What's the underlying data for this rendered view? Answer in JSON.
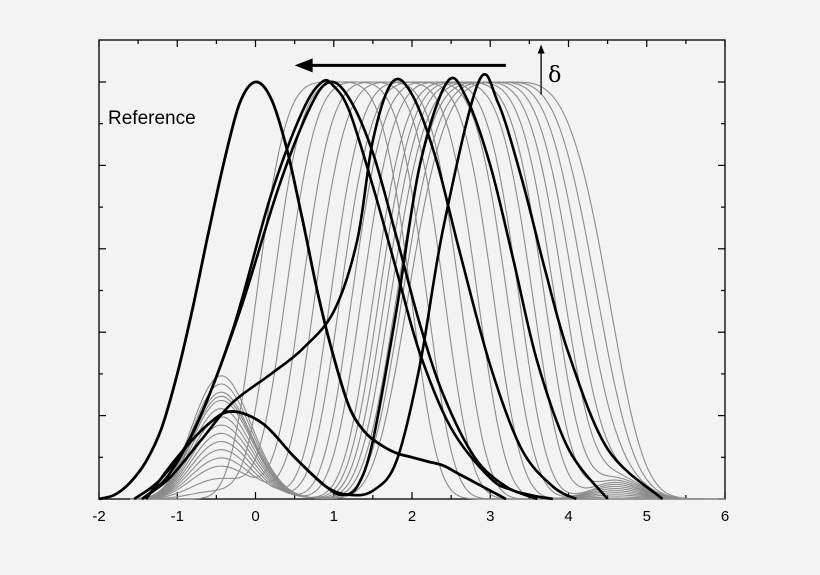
{
  "chart_data": {
    "type": "line",
    "title": "",
    "xlabel": "",
    "ylabel": "",
    "xlim": [
      -2,
      6
    ],
    "ylim": [
      0,
      1.0
    ],
    "x_ticks": [
      -2,
      -1,
      0,
      1,
      2,
      3,
      4,
      5,
      6
    ],
    "x_tick_labels": [
      "-2",
      "-1",
      "0",
      "1",
      "2",
      "3",
      "4",
      "5",
      "6"
    ],
    "y_tick_labels_shown": false,
    "grid": false,
    "legend": "none",
    "annotations": {
      "reference_label": "Reference",
      "delta_label": "δ"
    },
    "colors": {
      "highlight": "#000000",
      "family": "#8c8c8c",
      "background": "#f3f3f3"
    },
    "reference_series": {
      "name": "Reference",
      "x": [
        -2.0,
        -1.8,
        -1.6,
        -1.4,
        -1.2,
        -1.0,
        -0.8,
        -0.6,
        -0.4,
        -0.2,
        0.0,
        0.2,
        0.4,
        0.6,
        0.8,
        1.0,
        1.2,
        1.4,
        1.6,
        1.8,
        2.0,
        2.2,
        2.4,
        2.6,
        2.8,
        3.0,
        3.2
      ],
      "y": [
        0.0,
        0.01,
        0.04,
        0.09,
        0.17,
        0.3,
        0.46,
        0.64,
        0.81,
        0.95,
        1.0,
        0.96,
        0.84,
        0.67,
        0.49,
        0.34,
        0.22,
        0.16,
        0.13,
        0.11,
        0.1,
        0.09,
        0.08,
        0.06,
        0.04,
        0.02,
        0.0
      ]
    },
    "highlighted_curves": [
      {
        "x": [
          -1.55,
          -1.2,
          -0.8,
          -0.3,
          0.2,
          0.6,
          0.85,
          1.0,
          1.2,
          1.5,
          1.8,
          2.1,
          2.5,
          3.0,
          3.3,
          3.6
        ],
        "y": [
          0.0,
          0.05,
          0.16,
          0.4,
          0.73,
          0.93,
          1.0,
          0.99,
          0.93,
          0.75,
          0.55,
          0.35,
          0.17,
          0.05,
          0.02,
          0.0
        ]
      },
      {
        "x": [
          -1.45,
          -1.1,
          -0.7,
          -0.2,
          0.3,
          0.7,
          0.95,
          1.2,
          1.5,
          1.8,
          2.1,
          2.4,
          2.8,
          3.2,
          3.5,
          3.8
        ],
        "y": [
          0.0,
          0.06,
          0.2,
          0.45,
          0.75,
          0.94,
          1.0,
          0.96,
          0.83,
          0.63,
          0.42,
          0.25,
          0.1,
          0.03,
          0.01,
          0.0
        ]
      },
      {
        "x": [
          -1.45,
          -1.1,
          -0.7,
          -0.3,
          0.2,
          0.6,
          1.0,
          1.3,
          1.5,
          1.75,
          2.0,
          2.3,
          2.6,
          3.0,
          3.4,
          3.8,
          4.1
        ],
        "y": [
          0.0,
          0.05,
          0.14,
          0.23,
          0.3,
          0.36,
          0.45,
          0.62,
          0.86,
          1.0,
          0.97,
          0.82,
          0.6,
          0.32,
          0.12,
          0.03,
          0.0
        ]
      },
      {
        "x": [
          -1.4,
          -1.0,
          -0.6,
          -0.3,
          0.1,
          0.5,
          0.9,
          1.1,
          1.3,
          1.5,
          1.8,
          2.1,
          2.45,
          2.7,
          3.0,
          3.3,
          3.6,
          4.0,
          4.5
        ],
        "y": [
          0.0,
          0.1,
          0.18,
          0.21,
          0.18,
          0.1,
          0.03,
          0.01,
          0.03,
          0.14,
          0.45,
          0.8,
          1.0,
          0.96,
          0.8,
          0.57,
          0.33,
          0.12,
          0.0
        ]
      },
      {
        "x": [
          -1.4,
          -1.0,
          -0.6,
          -0.3,
          0.1,
          0.5,
          0.9,
          1.2,
          1.5,
          1.8,
          2.1,
          2.4,
          2.85,
          3.1,
          3.4,
          3.7,
          4.0,
          4.5,
          5.2
        ],
        "y": [
          0.0,
          0.1,
          0.18,
          0.21,
          0.18,
          0.1,
          0.03,
          0.01,
          0.02,
          0.09,
          0.32,
          0.65,
          1.0,
          0.95,
          0.77,
          0.55,
          0.35,
          0.12,
          0.0
        ]
      }
    ],
    "family_series": [
      {
        "peak": 1.0,
        "halfwidth": 1.9,
        "bump": 0.0
      },
      {
        "peak": 1.2,
        "halfwidth": 1.9,
        "bump": 0.02
      },
      {
        "peak": 1.4,
        "halfwidth": 1.95,
        "bump": 0.05
      },
      {
        "peak": 1.6,
        "halfwidth": 1.95,
        "bump": 0.08
      },
      {
        "peak": 1.8,
        "halfwidth": 2.0,
        "bump": 0.1
      },
      {
        "peak": 2.0,
        "halfwidth": 2.0,
        "bump": 0.12
      },
      {
        "peak": 2.15,
        "halfwidth": 2.05,
        "bump": 0.14
      },
      {
        "peak": 2.3,
        "halfwidth": 2.05,
        "bump": 0.16
      },
      {
        "peak": 2.45,
        "halfwidth": 2.1,
        "bump": 0.18
      },
      {
        "peak": 2.6,
        "halfwidth": 2.1,
        "bump": 0.2
      },
      {
        "peak": 2.7,
        "halfwidth": 2.15,
        "bump": 0.22
      },
      {
        "peak": 2.8,
        "halfwidth": 2.2,
        "bump": 0.24
      },
      {
        "peak": 2.9,
        "halfwidth": 2.25,
        "bump": 0.25
      },
      {
        "peak": 3.0,
        "halfwidth": 2.3,
        "bump": 0.26
      },
      {
        "peak": 3.1,
        "halfwidth": 2.35,
        "bump": 0.28
      },
      {
        "peak": 3.2,
        "halfwidth": 2.4,
        "bump": 0.3
      }
    ],
    "arrow_annotation": {
      "x_from": 3.2,
      "x_to": 0.5,
      "y": 1.04
    },
    "delta_arrow": {
      "x": 3.65,
      "y_from": 0.97,
      "y_to": 1.09
    }
  }
}
